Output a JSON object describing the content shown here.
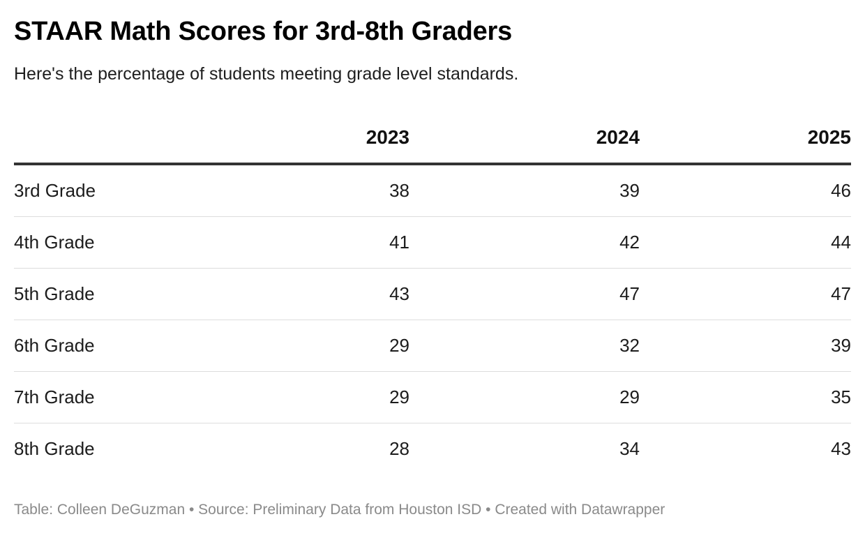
{
  "title": "STAAR Math Scores for 3rd-8th Graders",
  "subtitle": "Here's the percentage of students meeting grade level standards.",
  "footer": "Table: Colleen DeGuzman • Source: Preliminary Data from Houston ISD • Created with Datawrapper",
  "colors": {
    "text": "#181818",
    "header_rule": "#333333",
    "row_divider": "#dddddd",
    "footer_text": "#8a8a8a"
  },
  "chart_data": {
    "type": "table",
    "title": "STAAR Math Scores for 3rd-8th Graders",
    "subtitle": "Here's the percentage of students meeting grade level standards.",
    "columns": [
      "",
      "2023",
      "2024",
      "2025"
    ],
    "rows": [
      {
        "label": "3rd Grade",
        "values": [
          38,
          39,
          46
        ]
      },
      {
        "label": "4th Grade",
        "values": [
          41,
          42,
          44
        ]
      },
      {
        "label": "5th Grade",
        "values": [
          43,
          47,
          47
        ]
      },
      {
        "label": "6th Grade",
        "values": [
          29,
          32,
          39
        ]
      },
      {
        "label": "7th Grade",
        "values": [
          29,
          29,
          35
        ]
      },
      {
        "label": "8th Grade",
        "values": [
          28,
          34,
          43
        ]
      }
    ]
  }
}
